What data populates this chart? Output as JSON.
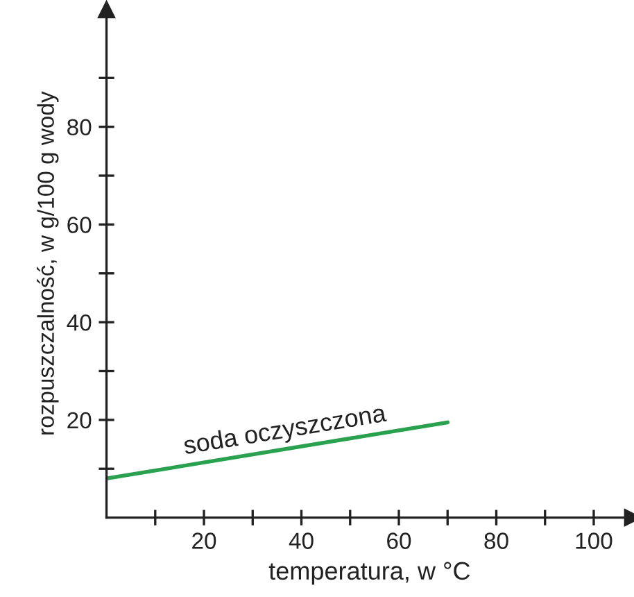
{
  "chart_data": {
    "type": "line",
    "xlabel": "temperatura, w °C",
    "ylabel": "rozpuszczalność, w g/100 g wody",
    "x": [
      0,
      70
    ],
    "series": [
      {
        "name": "soda oczyszczona",
        "color": "#2aa14f",
        "values": [
          8,
          19.5
        ]
      }
    ],
    "xlim": [
      0,
      108
    ],
    "ylim": [
      0,
      104
    ],
    "xticks": [
      {
        "value": 10,
        "label": null
      },
      20,
      {
        "value": 30,
        "label": null
      },
      40,
      {
        "value": 50,
        "label": null
      },
      60,
      {
        "value": 70,
        "label": null
      },
      80,
      {
        "value": 90,
        "label": null
      },
      100
    ],
    "yticks": [
      {
        "value": 10,
        "label": null
      },
      20,
      {
        "value": 30,
        "label": null
      },
      40,
      {
        "value": 50,
        "label": null
      },
      60,
      {
        "value": 70,
        "label": null
      },
      80,
      {
        "value": 90,
        "label": null
      }
    ],
    "grid": false,
    "legend": false,
    "marker": "none",
    "line_style": "solid"
  }
}
